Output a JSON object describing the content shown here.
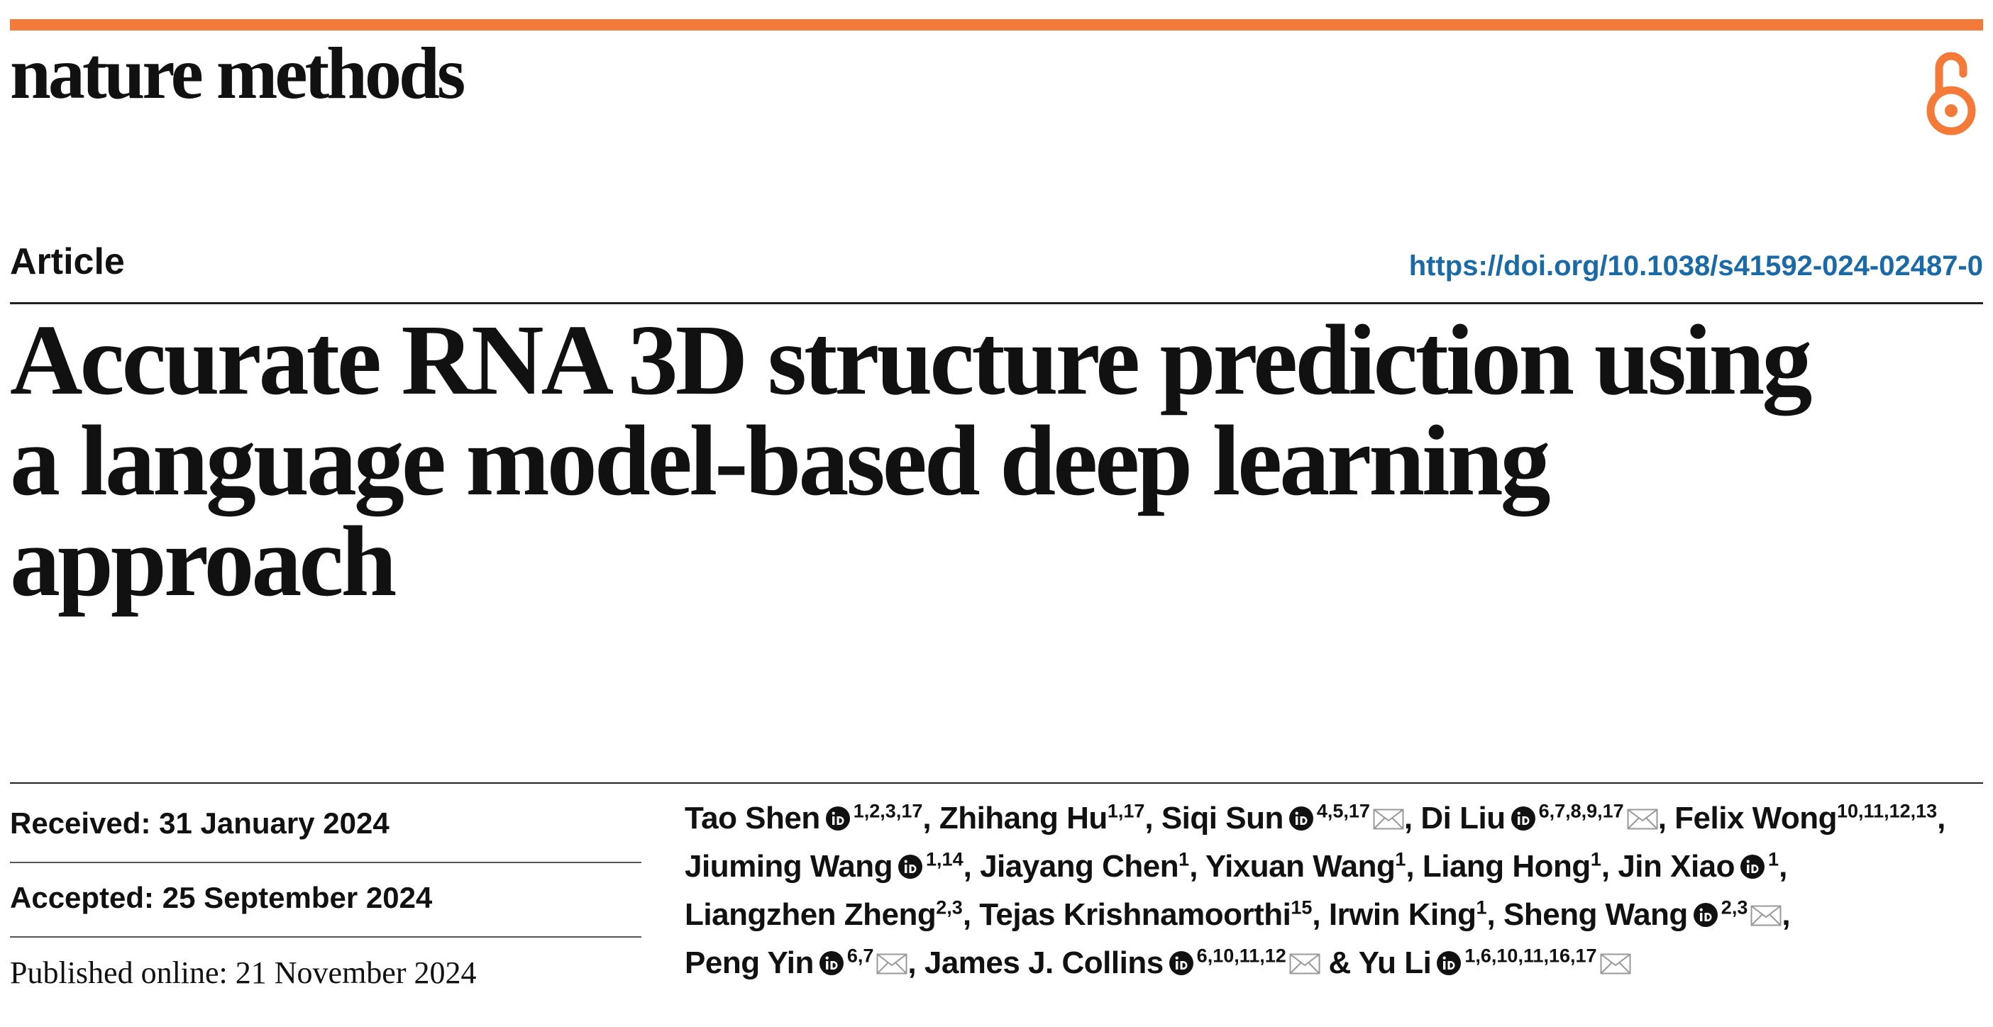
{
  "colors": {
    "accent_bar": "#f47a3a",
    "open_access": "#f47a3a",
    "doi_link": "#1a6aa8",
    "text": "#111111"
  },
  "header": {
    "journal_name": "nature methods",
    "open_access_icon": "open-access-lock-icon"
  },
  "article": {
    "type": "Article",
    "doi": "https://doi.org/10.1038/s41592-024-02487-0",
    "title_lines": [
      "Accurate RNA 3D structure prediction using",
      "a language model-based deep learning",
      "approach"
    ]
  },
  "dates": {
    "received": "Received: 31 January 2024",
    "accepted": "Accepted: 25 September 2024",
    "published": "Published online: 21 November 2024"
  },
  "authors": [
    {
      "name": "Tao Shen",
      "orcid": true,
      "aff": "1,2,3,17",
      "corresponding": false,
      "sep": ","
    },
    {
      "name": "Zhihang Hu",
      "orcid": false,
      "aff": "1,17",
      "corresponding": false,
      "sep": ","
    },
    {
      "name": "Siqi Sun",
      "orcid": true,
      "aff": "4,5,17",
      "corresponding": true,
      "sep": ","
    },
    {
      "name": "Di Liu",
      "orcid": true,
      "aff": "6,7,8,9,17",
      "corresponding": true,
      "sep": ","
    },
    {
      "name": "Felix Wong",
      "orcid": false,
      "aff": "10,11,12,13",
      "corresponding": false,
      "sep": ","
    },
    {
      "name": "Jiuming Wang",
      "orcid": true,
      "aff": "1,14",
      "corresponding": false,
      "sep": ","
    },
    {
      "name": "Jiayang Chen",
      "orcid": false,
      "aff": "1",
      "corresponding": false,
      "sep": ","
    },
    {
      "name": "Yixuan Wang",
      "orcid": false,
      "aff": "1",
      "corresponding": false,
      "sep": ","
    },
    {
      "name": "Liang Hong",
      "orcid": false,
      "aff": "1",
      "corresponding": false,
      "sep": ","
    },
    {
      "name": "Jin Xiao",
      "orcid": true,
      "aff": "1",
      "corresponding": false,
      "sep": ","
    },
    {
      "name": "Liangzhen Zheng",
      "orcid": false,
      "aff": "2,3",
      "corresponding": false,
      "sep": ","
    },
    {
      "name": "Tejas Krishnamoorthi",
      "orcid": false,
      "aff": "15",
      "corresponding": false,
      "sep": ","
    },
    {
      "name": "Irwin King",
      "orcid": false,
      "aff": "1",
      "corresponding": false,
      "sep": ","
    },
    {
      "name": "Sheng Wang",
      "orcid": true,
      "aff": "2,3",
      "corresponding": true,
      "sep": ","
    },
    {
      "name": "Peng Yin",
      "orcid": true,
      "aff": "6,7",
      "corresponding": true,
      "sep": ","
    },
    {
      "name": "James J. Collins",
      "orcid": true,
      "aff": "6,10,11,12",
      "corresponding": true,
      "sep": " &"
    },
    {
      "name": "Yu Li",
      "orcid": true,
      "aff": "1,6,10,11,16,17",
      "corresponding": true,
      "sep": ""
    }
  ]
}
